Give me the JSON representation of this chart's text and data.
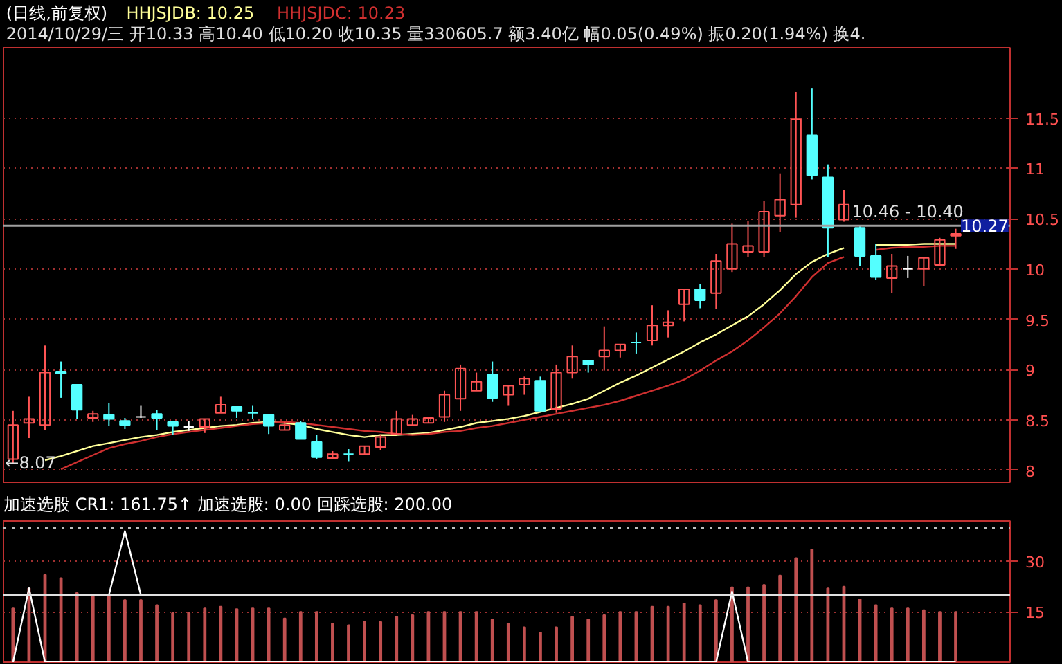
{
  "chart_data": [
    {
      "type": "candlestick",
      "title": "(日线,前复权)",
      "subtitle": "2014/10/29/三 开10.33 高10.40 低10.20 收10.35 量330605.7 额3.40亿 幅0.05(0.49%) 振0.20(1.94%) 换4.",
      "categories": [
        null,
        null,
        null,
        null,
        null,
        null,
        null,
        null,
        null,
        null,
        null,
        null,
        null,
        null,
        null,
        null,
        null,
        null,
        null,
        null,
        null,
        null,
        null,
        null,
        null,
        null,
        null,
        null,
        null,
        null,
        null,
        null,
        null,
        null,
        null,
        null,
        null,
        null,
        null,
        null,
        null,
        null,
        null,
        null,
        null,
        null,
        null,
        null,
        null,
        null,
        null,
        null,
        null,
        null,
        null,
        null,
        null,
        null,
        null,
        null
      ],
      "ohlc": [
        [
          8.11,
          8.59,
          8.07,
          8.45
        ],
        [
          8.47,
          8.73,
          8.32,
          8.51
        ],
        [
          8.45,
          9.24,
          8.4,
          8.97
        ],
        [
          8.98,
          9.08,
          8.72,
          8.96
        ],
        [
          8.85,
          8.85,
          8.51,
          8.6
        ],
        [
          8.52,
          8.59,
          8.48,
          8.56
        ],
        [
          8.55,
          8.67,
          8.44,
          8.51
        ],
        [
          8.49,
          8.52,
          8.41,
          8.45
        ],
        [
          8.53,
          8.64,
          8.52,
          8.53
        ],
        [
          8.56,
          8.6,
          8.4,
          8.52
        ],
        [
          8.48,
          8.48,
          8.35,
          8.44
        ],
        [
          8.43,
          8.49,
          8.39,
          8.43
        ],
        [
          8.43,
          8.51,
          8.37,
          8.51
        ],
        [
          8.57,
          8.73,
          8.57,
          8.65
        ],
        [
          8.63,
          8.63,
          8.52,
          8.59
        ],
        [
          8.57,
          8.64,
          8.51,
          8.57
        ],
        [
          8.55,
          8.56,
          8.36,
          8.44
        ],
        [
          8.4,
          8.48,
          8.4,
          8.45
        ],
        [
          8.47,
          8.49,
          8.31,
          8.31
        ],
        [
          8.28,
          8.35,
          8.11,
          8.13
        ],
        [
          8.12,
          8.19,
          8.12,
          8.16
        ],
        [
          8.16,
          8.21,
          8.09,
          8.16
        ],
        [
          8.16,
          8.24,
          8.16,
          8.24
        ],
        [
          8.23,
          8.35,
          8.2,
          8.33
        ],
        [
          8.36,
          8.59,
          8.35,
          8.51
        ],
        [
          8.45,
          8.55,
          8.44,
          8.51
        ],
        [
          8.47,
          8.52,
          8.47,
          8.52
        ],
        [
          8.53,
          8.79,
          8.48,
          8.75
        ],
        [
          8.71,
          9.05,
          8.59,
          9.01
        ],
        [
          8.79,
          8.97,
          8.79,
          8.88
        ],
        [
          8.95,
          9.08,
          8.68,
          8.72
        ],
        [
          8.75,
          8.84,
          8.64,
          8.84
        ],
        [
          8.85,
          8.93,
          8.75,
          8.91
        ],
        [
          8.89,
          8.93,
          8.59,
          8.59
        ],
        [
          8.61,
          9.05,
          8.57,
          8.97
        ],
        [
          8.97,
          9.24,
          8.91,
          9.13
        ],
        [
          9.09,
          9.09,
          8.97,
          9.05
        ],
        [
          9.13,
          9.43,
          8.99,
          9.19
        ],
        [
          9.19,
          9.25,
          9.12,
          9.25
        ],
        [
          9.27,
          9.37,
          9.16,
          9.27
        ],
        [
          9.29,
          9.64,
          9.24,
          9.44
        ],
        [
          9.44,
          9.59,
          9.32,
          9.47
        ],
        [
          9.65,
          9.8,
          9.48,
          9.8
        ],
        [
          9.8,
          9.85,
          9.61,
          9.69
        ],
        [
          9.76,
          10.15,
          9.6,
          10.08
        ],
        [
          10.0,
          10.45,
          9.97,
          10.25
        ],
        [
          10.17,
          10.48,
          10.12,
          10.23
        ],
        [
          10.17,
          10.68,
          10.12,
          10.57
        ],
        [
          10.53,
          10.95,
          10.37,
          10.69
        ],
        [
          10.64,
          11.76,
          10.51,
          11.49
        ],
        [
          11.33,
          11.8,
          10.89,
          10.93
        ],
        [
          10.91,
          11.04,
          10.12,
          10.41
        ],
        [
          10.49,
          10.79,
          10.47,
          10.64
        ],
        [
          10.41,
          10.43,
          10.03,
          10.13
        ],
        [
          10.13,
          10.25,
          9.89,
          9.92
        ],
        [
          9.91,
          10.15,
          9.76,
          10.03
        ],
        [
          10.0,
          10.13,
          9.91,
          10.0
        ],
        [
          10.0,
          10.11,
          9.83,
          10.11
        ],
        [
          10.04,
          10.31,
          10.04,
          10.29
        ],
        [
          10.33,
          10.4,
          10.2,
          10.35
        ]
      ],
      "colors": [
        "#ff5454",
        "#ff5454",
        "#ff5454",
        "#54ffff",
        "#54ffff",
        "#ff5454",
        "#54ffff",
        "#54ffff",
        "#ffffff",
        "#54ffff",
        "#54ffff",
        "#ffffff",
        "#ff5454",
        "#ff5454",
        "#54ffff",
        "#54ffff",
        "#54ffff",
        "#ff5454",
        "#54ffff",
        "#54ffff",
        "#ff5454",
        "#54ffff",
        "#ff5454",
        "#ff5454",
        "#ff5454",
        "#ff5454",
        "#ff5454",
        "#ff5454",
        "#ff5454",
        "#ff5454",
        "#54ffff",
        "#ff5454",
        "#ff5454",
        "#54ffff",
        "#ff5454",
        "#ff5454",
        "#54ffff",
        "#ff5454",
        "#ff5454",
        "#54ffff",
        "#ff5454",
        "#ff5454",
        "#ff5454",
        "#54ffff",
        "#ff5454",
        "#ff5454",
        "#ff5454",
        "#ff5454",
        "#ff5454",
        "#ff5454",
        "#54ffff",
        "#54ffff",
        "#ff5454",
        "#54ffff",
        "#54ffff",
        "#ff5454",
        "#ffffff",
        "#ff5454",
        "#ff5454",
        "#ff5454"
      ],
      "series": [
        {
          "name": "HHJSJDB: 10.25",
          "type": "line",
          "color": "#ffff99",
          "values": [
            null,
            null,
            8.1,
            8.14,
            8.19,
            8.24,
            8.27,
            8.3,
            8.33,
            8.35,
            8.38,
            8.4,
            8.42,
            8.44,
            8.45,
            8.47,
            8.48,
            8.47,
            8.45,
            8.41,
            8.38,
            8.35,
            8.33,
            8.35,
            8.35,
            8.36,
            8.37,
            8.4,
            8.43,
            8.47,
            8.49,
            8.51,
            8.54,
            8.58,
            8.62,
            8.66,
            8.71,
            8.79,
            8.87,
            8.94,
            9.02,
            9.1,
            9.18,
            9.27,
            9.35,
            9.44,
            9.53,
            9.65,
            9.79,
            9.95,
            10.07,
            10.15,
            10.21,
            null,
            10.24,
            10.24,
            10.24,
            10.25,
            10.25,
            10.25
          ]
        },
        {
          "name": "HHJSJDC: 10.23",
          "type": "line",
          "color": "#d03030",
          "values": [
            null,
            null,
            null,
            8.01,
            8.08,
            8.15,
            8.22,
            8.26,
            8.29,
            8.33,
            8.36,
            8.38,
            8.4,
            8.42,
            8.44,
            8.46,
            8.47,
            8.48,
            8.47,
            8.45,
            8.43,
            8.41,
            8.39,
            8.38,
            8.36,
            8.35,
            8.36,
            8.38,
            8.39,
            8.42,
            8.44,
            8.47,
            8.5,
            8.53,
            8.56,
            8.59,
            8.62,
            8.65,
            8.69,
            8.74,
            8.79,
            8.84,
            8.9,
            8.99,
            9.09,
            9.18,
            9.29,
            9.42,
            9.56,
            9.73,
            9.92,
            10.06,
            10.12,
            null,
            10.19,
            10.21,
            10.22,
            10.22,
            10.23,
            10.23
          ]
        }
      ],
      "ylim": [
        7.88,
        12.2
      ],
      "yticks": [
        8,
        8.5,
        9,
        9.5,
        10,
        10.5,
        11,
        11.5
      ],
      "grid": "y",
      "tick_labels": "y",
      "legend": "top left",
      "ref_lines": [
        {
          "axis": "y",
          "value": 10.43,
          "color": "#a0a0a0"
        }
      ],
      "annotations": [
        "←8.07",
        "10.46 - 10.40",
        "10.27"
      ]
    },
    {
      "type": "bar",
      "title": "加速选股  CR1: 161.75↑  加速选股: 0.00  回踩选股: 200.00",
      "categories": [
        null,
        null,
        null,
        null,
        null,
        null,
        null,
        null,
        null,
        null,
        null,
        null,
        null,
        null,
        null,
        null,
        null,
        null,
        null,
        null,
        null,
        null,
        null,
        null,
        null,
        null,
        null,
        null,
        null,
        null,
        null,
        null,
        null,
        null,
        null,
        null,
        null,
        null,
        null,
        null,
        null,
        null,
        null,
        null,
        null,
        null,
        null,
        null,
        null,
        null,
        null,
        null,
        null,
        null,
        null,
        null,
        null,
        null,
        null,
        null
      ],
      "series": [
        {
          "type": "bar",
          "color": "#c05050",
          "values": [
            16,
            22,
            26,
            25,
            20.6,
            20,
            20,
            18.5,
            18.5,
            17,
            14.6,
            14.6,
            16,
            16.5,
            15.8,
            16,
            16,
            13,
            15,
            15,
            11.5,
            11,
            12,
            12,
            13.5,
            14,
            15,
            15,
            15,
            15,
            12.7,
            11.5,
            10.4,
            8.8,
            10.4,
            13.5,
            12.7,
            14,
            15,
            15,
            16.5,
            16.5,
            17.5,
            17,
            18.5,
            22.3,
            22.3,
            23,
            25.8,
            31,
            33.5,
            22,
            22.5,
            18.7,
            17,
            16,
            16,
            15.5,
            15,
            15
          ]
        },
        {
          "type": "line",
          "color": "#ffffff",
          "values": [
            0,
            22,
            0,
            0,
            0,
            0,
            0,
            0,
            0,
            0,
            0,
            0,
            0,
            0,
            0,
            0,
            0,
            0,
            0,
            0,
            0,
            0,
            0,
            0,
            0,
            0,
            0,
            0,
            0,
            0,
            0,
            0,
            0,
            0,
            0,
            0,
            0,
            0,
            0,
            0,
            0,
            0,
            0,
            0,
            0,
            21,
            0,
            0,
            0,
            0,
            0,
            0,
            0,
            0,
            0,
            0,
            0,
            0,
            0,
            0
          ]
        },
        {
          "type": "line",
          "color": "#ffffff",
          "values": [
            null,
            null,
            null,
            null,
            null,
            null,
            20,
            39,
            20,
            null,
            null,
            null,
            null,
            null,
            null,
            null,
            null,
            null,
            null,
            null,
            null,
            null,
            null,
            null,
            null,
            null,
            null,
            null,
            null,
            null,
            null,
            null,
            null,
            null,
            null,
            null,
            null,
            null,
            null,
            null,
            null,
            null,
            null,
            null,
            null,
            null,
            null,
            null,
            null,
            null,
            null,
            null,
            null,
            null,
            null,
            null,
            null,
            null,
            null,
            null
          ]
        }
      ],
      "ylim": [
        0,
        42
      ],
      "yticks": [
        15,
        30
      ],
      "grid": "y",
      "tick_labels": "y",
      "ref_lines": [
        {
          "axis": "y",
          "value": 20,
          "color": "#e0e0e0",
          "line_style": "solid"
        },
        {
          "axis": "y",
          "value": 40,
          "color": "#c0c0c0",
          "line_style": "dotted"
        }
      ]
    }
  ]
}
